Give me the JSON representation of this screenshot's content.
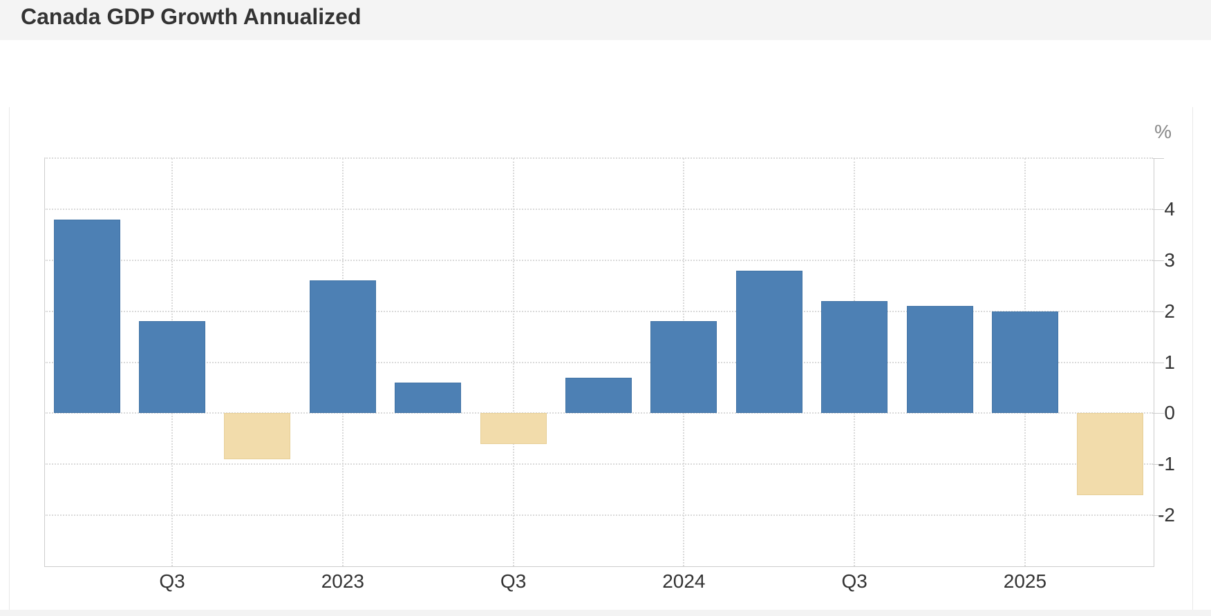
{
  "header": {
    "title": "Canada GDP Growth Annualized"
  },
  "chart_data": {
    "type": "bar",
    "title": "Canada GDP Growth Annualized",
    "unit_label": "%",
    "categories": [
      "2022 Q2",
      "2022 Q3",
      "2022 Q4",
      "2023 Q1",
      "2023 Q2",
      "2023 Q3",
      "2023 Q4",
      "2024 Q1",
      "2024 Q2",
      "2024 Q3",
      "2024 Q4",
      "2025 Q1",
      "2025 Q2"
    ],
    "values": [
      3.8,
      1.8,
      -0.9,
      2.6,
      0.6,
      -0.6,
      0.7,
      1.8,
      2.8,
      2.2,
      2.1,
      2.0,
      -1.6
    ],
    "x_axis": {
      "tick_labels": [
        "Q3",
        "2023",
        "Q3",
        "2024",
        "Q3",
        "2025"
      ],
      "tick_bar_indices": [
        1,
        3,
        5,
        7,
        9,
        11
      ]
    },
    "y_axis": {
      "position": "right",
      "unit": "%",
      "tick_labels": [
        "-2",
        "-1",
        "0",
        "1",
        "2",
        "3",
        "4"
      ],
      "tick_values": [
        -2,
        -1,
        0,
        1,
        2,
        3,
        4
      ],
      "min": -3,
      "max": 5
    },
    "grid": true,
    "legend": "none",
    "colors": {
      "positive_bar": "#4d80b4",
      "positive_bar_border": "#4173a5",
      "negative_bar": "#f2dcab",
      "negative_bar_border": "#e7cf97"
    }
  }
}
